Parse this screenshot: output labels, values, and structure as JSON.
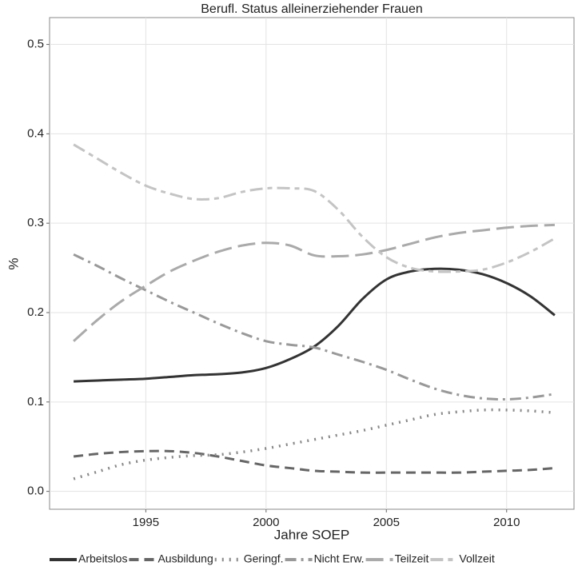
{
  "chart_data": {
    "type": "line",
    "title": "Berufl. Status alleinerziehender Frauen",
    "x_label": "Jahre SOEP",
    "y_label": "%",
    "x": [
      1992,
      1993,
      1994,
      1995,
      1996,
      1997,
      1998,
      1999,
      2000,
      2001,
      2002,
      2003,
      2004,
      2005,
      2006,
      2007,
      2008,
      2009,
      2010,
      2011,
      2012
    ],
    "xlim": [
      1991,
      2012.8
    ],
    "xticks": [
      1995,
      2000,
      2005,
      2010
    ],
    "ylim": [
      -0.02,
      0.53
    ],
    "yticks": [
      {
        "value": 0,
        "label": "0.0"
      },
      0.1,
      0.2,
      0.3,
      0.4,
      0.5
    ],
    "grid": true,
    "legend": "bottom",
    "series": [
      {
        "name": "Arbeitslos",
        "color": "#333333",
        "dash": "none",
        "width": 3,
        "values": [
          0.123,
          0.124,
          0.125,
          0.126,
          0.128,
          0.13,
          0.131,
          0.133,
          0.138,
          0.148,
          0.162,
          0.185,
          0.215,
          0.237,
          0.246,
          0.249,
          0.248,
          0.243,
          0.233,
          0.218,
          0.197
        ]
      },
      {
        "name": "Ausbildung",
        "color": "#666666",
        "dash": "12,7",
        "width": 3,
        "values": [
          0.039,
          0.042,
          0.044,
          0.045,
          0.045,
          0.043,
          0.039,
          0.034,
          0.029,
          0.026,
          0.023,
          0.022,
          0.021,
          0.021,
          0.021,
          0.021,
          0.021,
          0.022,
          0.023,
          0.024,
          0.026
        ]
      },
      {
        "name": "Geringf.",
        "color": "#888888",
        "dash": "2,7",
        "width": 3.5,
        "values": [
          0.014,
          0.022,
          0.03,
          0.035,
          0.038,
          0.04,
          0.041,
          0.044,
          0.048,
          0.053,
          0.058,
          0.063,
          0.068,
          0.074,
          0.08,
          0.086,
          0.089,
          0.091,
          0.091,
          0.09,
          0.088
        ]
      },
      {
        "name": "Nicht Erw.",
        "color": "#999999",
        "dash": "14,6,3,6",
        "width": 3,
        "values": [
          0.265,
          0.252,
          0.238,
          0.225,
          0.212,
          0.2,
          0.188,
          0.177,
          0.168,
          0.164,
          0.161,
          0.153,
          0.145,
          0.136,
          0.125,
          0.115,
          0.108,
          0.104,
          0.103,
          0.105,
          0.109
        ]
      },
      {
        "name": "Teilzeit",
        "color": "#aaaaaa",
        "dash": "22,8",
        "width": 3,
        "values": [
          0.168,
          0.192,
          0.213,
          0.23,
          0.246,
          0.258,
          0.268,
          0.275,
          0.278,
          0.275,
          0.264,
          0.263,
          0.265,
          0.27,
          0.277,
          0.284,
          0.289,
          0.292,
          0.295,
          0.297,
          0.298
        ]
      },
      {
        "name": "Vollzeit",
        "color": "#c4c4c4",
        "dash": "16,6,6,6",
        "width": 3,
        "values": [
          0.388,
          0.372,
          0.356,
          0.342,
          0.333,
          0.327,
          0.328,
          0.335,
          0.339,
          0.339,
          0.336,
          0.315,
          0.285,
          0.262,
          0.25,
          0.246,
          0.246,
          0.248,
          0.256,
          0.268,
          0.283
        ]
      }
    ]
  }
}
